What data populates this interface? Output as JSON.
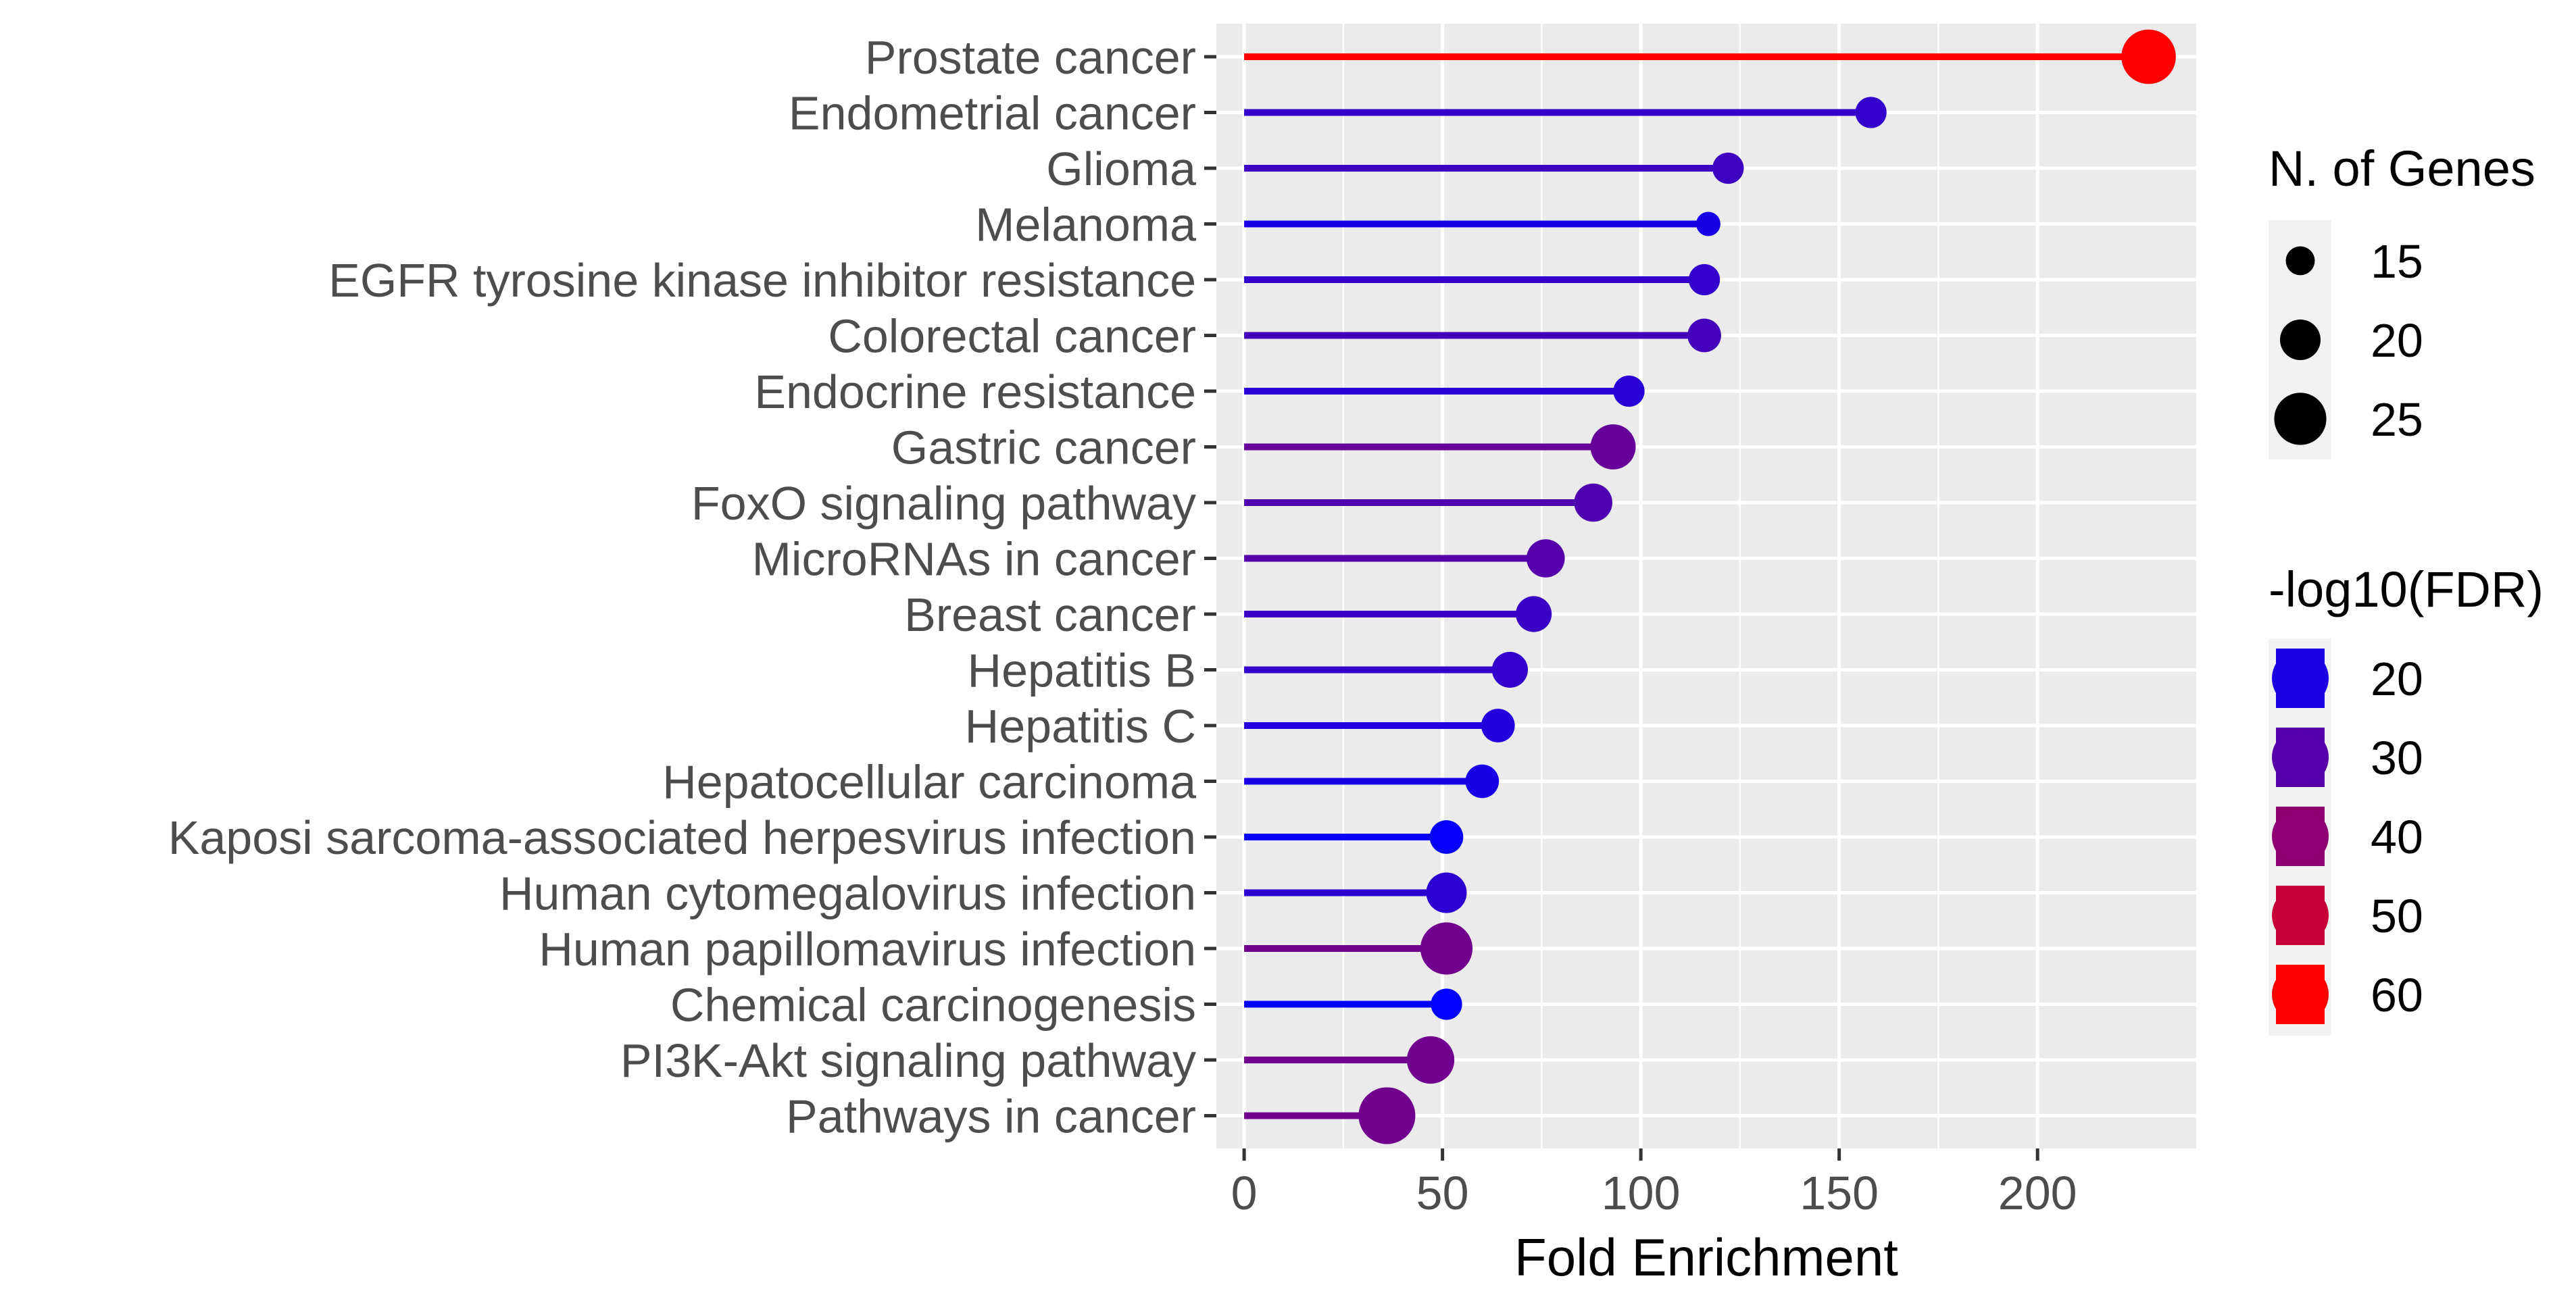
{
  "chart_data": {
    "type": "lollipop",
    "categories": [
      "Prostate cancer",
      "Endometrial cancer",
      "Glioma",
      "Melanoma",
      "EGFR tyrosine kinase inhibitor resistance",
      "Colorectal cancer",
      "Endocrine resistance",
      "Gastric cancer",
      "FoxO signaling pathway",
      "MicroRNAs in cancer",
      "Breast cancer",
      "Hepatitis B",
      "Hepatitis C",
      "Hepatocellular carcinoma",
      "Kaposi sarcoma-associated herpesvirus infection",
      "Human cytomegalovirus infection",
      "Human papillomavirus infection",
      "Chemical carcinogenesis",
      "PI3K-Akt signaling pathway",
      "Pathways in cancer"
    ],
    "fold_enrichment": [
      228,
      158,
      122,
      117,
      116,
      116,
      97,
      93,
      88,
      76,
      73,
      67,
      64,
      60,
      51,
      51,
      51,
      51,
      47,
      36
    ],
    "n_genes": [
      26,
      16,
      16,
      13,
      16,
      17,
      16,
      22,
      19,
      19,
      18,
      18,
      17,
      17,
      17,
      20,
      25,
      16,
      23,
      27
    ],
    "neg_log10_fdr": [
      60,
      24,
      26,
      19,
      24,
      27,
      22,
      33,
      29,
      30,
      25,
      24,
      21,
      19,
      16,
      23,
      35,
      15,
      35,
      35
    ],
    "xlabel": "Fold Enrichment",
    "xlim": [
      -7,
      240
    ],
    "x_ticks": [
      0,
      50,
      100,
      150,
      200
    ],
    "legend_size": {
      "title": "N. of Genes",
      "entries": [
        {
          "label": "15",
          "value": 15
        },
        {
          "label": "20",
          "value": 20
        },
        {
          "label": "25",
          "value": 25
        }
      ]
    },
    "legend_color": {
      "title": "-log10(FDR)",
      "entries": [
        {
          "label": "20",
          "value": 20
        },
        {
          "label": "30",
          "value": 30
        },
        {
          "label": "40",
          "value": 40
        },
        {
          "label": "50",
          "value": 50
        },
        {
          "label": "60",
          "value": 60
        }
      ]
    },
    "colors": {
      "panel_bg": "#ebebeb",
      "low": "#0000ff",
      "high": "#ff0000",
      "axis_text": "#4d4d4d"
    }
  }
}
